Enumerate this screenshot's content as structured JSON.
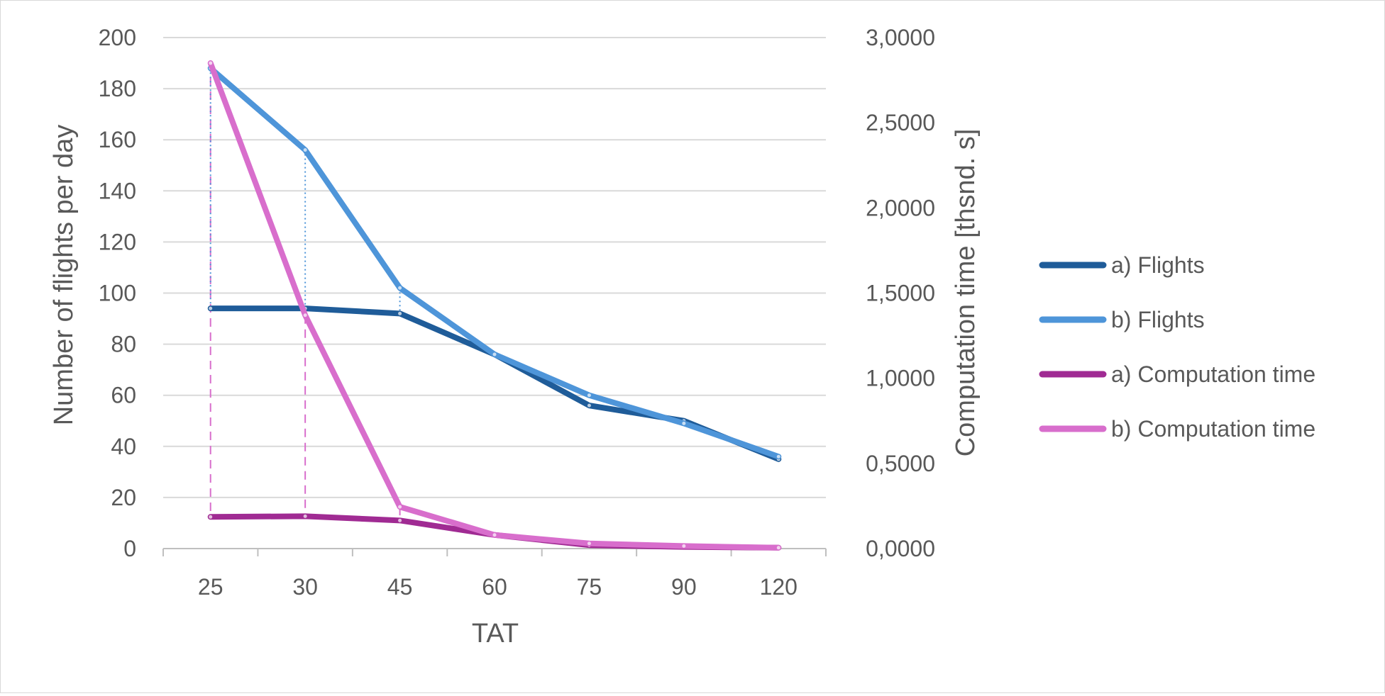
{
  "chart_data": {
    "type": "line",
    "title": "",
    "xlabel": "TAT",
    "ylabel": "Number of flights per day",
    "y2label": "Computation time [thsnd. s]",
    "categories": [
      "25",
      "30",
      "45",
      "60",
      "75",
      "90",
      "120"
    ],
    "ylim": [
      0,
      200
    ],
    "yticks": [
      "0",
      "20",
      "40",
      "60",
      "80",
      "100",
      "120",
      "140",
      "160",
      "180",
      "200"
    ],
    "y2lim": [
      0,
      3
    ],
    "y2ticks": [
      "0,0000",
      "0,5000",
      "1,0000",
      "1,5000",
      "2,0000",
      "2,5000",
      "3,0000"
    ],
    "grid": "horizontal",
    "legend_position": "right",
    "series": [
      {
        "name": "a) Flights",
        "axis": "left",
        "color": "#1f5c99",
        "values": [
          94,
          94,
          92,
          76,
          56,
          50,
          35
        ]
      },
      {
        "name": "b) Flights",
        "axis": "left",
        "color": "#4e95d9",
        "values": [
          188,
          156,
          102,
          76,
          60,
          49,
          36
        ]
      },
      {
        "name": "a) Computation time",
        "axis": "right",
        "color": "#a02b93",
        "values": [
          0.186,
          0.19,
          0.165,
          0.08,
          0.02,
          0.01,
          0.005
        ]
      },
      {
        "name": "b) Computation time",
        "axis": "right",
        "color": "#d86ecc",
        "values": [
          2.85,
          1.37,
          0.245,
          0.08,
          0.03,
          0.015,
          0.005
        ]
      }
    ],
    "dropline_categories": [
      "25",
      "30",
      "45"
    ]
  }
}
